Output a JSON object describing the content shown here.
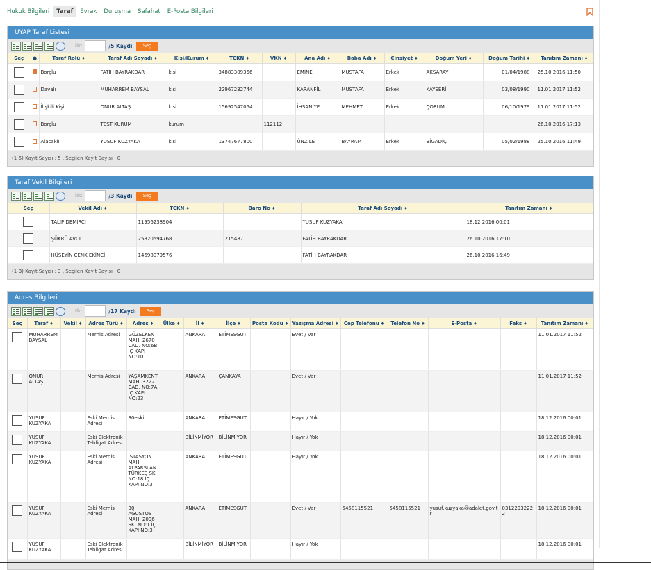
{
  "tabs": [
    "Hukuk Bilgileri",
    "Taraf",
    "Evrak",
    "Duruşma",
    "Safahat",
    "E-Posta Bilgileri"
  ],
  "active_tab": "Taraf",
  "taraf": {
    "title": "UYAP Taraf Listesi",
    "ilk_label": "İlk:",
    "ilk_value": "",
    "kayit_label": "/5 Kaydı",
    "sec_label": "Seç",
    "columns": [
      "Seç",
      "●",
      "Taraf Rolü",
      "Taraf Adı Soyadı",
      "Kişi/Kurum",
      "TCKN",
      "VKN",
      "Ana Adı",
      "Baba Adı",
      "Cinsiyet",
      "Doğum Yeri",
      "Doğum Tarihi",
      "Tanıtım Zamanı"
    ],
    "rows": [
      {
        "flag": "full",
        "rol": "Borçlu",
        "ad": "FATİH BAYRAKDAR",
        "tip": "kisi",
        "tckn": "34883309356",
        "vkn": "",
        "ana": "EMİNE",
        "baba": "MUSTAFA",
        "cins": "Erkek",
        "yer": "AKSARAY",
        "dt": "01/04/1988",
        "tz": "25.10.2016 11:50"
      },
      {
        "flag": "outline",
        "rol": "Davalı",
        "ad": "MUHARREM BAYSAL",
        "tip": "kisi",
        "tckn": "22967232744",
        "vkn": "",
        "ana": "KARANFİL",
        "baba": "MUSTAFA",
        "cins": "Erkek",
        "yer": "KAYSERİ",
        "dt": "03/08/1990",
        "tz": "11.01.2017 11:52"
      },
      {
        "flag": "outline",
        "rol": "İlişkili Kişi",
        "ad": "ONUR ALTAŞ",
        "tip": "kisi",
        "tckn": "15692547054",
        "vkn": "",
        "ana": "İHSANİYE",
        "baba": "MEHMET",
        "cins": "Erkek",
        "yer": "ÇORUM",
        "dt": "06/10/1979",
        "tz": "11.01.2017 11:52"
      },
      {
        "flag": "outline",
        "rol": "Borçlu",
        "ad": "TEST KURUM",
        "tip": "kurum",
        "tckn": "",
        "vkn": "112112",
        "ana": "",
        "baba": "",
        "cins": "",
        "yer": "",
        "dt": "",
        "tz": "26.10.2016 17:13"
      },
      {
        "flag": "outline",
        "rol": "Alacaklı",
        "ad": "YUSUF KUZYAKA",
        "tip": "kisi",
        "tckn": "13747677800",
        "vkn": "",
        "ana": "ÜNZİLE",
        "baba": "BAYRAM",
        "cins": "Erkek",
        "yer": "BİGADİÇ",
        "dt": "05/02/1988",
        "tz": "25.10.2016 11:49"
      }
    ],
    "footer": "(1-5) Kayıt Sayısı : 5  , Seçilen Kayıt Sayısı : 0"
  },
  "vekil": {
    "title": "Taraf Vekil Bilgileri",
    "ilk_label": "İlk:",
    "ilk_value": "",
    "kayit_label": "/3 Kaydı",
    "sec_label": "Seç",
    "columns": [
      "Seç",
      "Vekil Adı",
      "TCKN",
      "Baro No",
      "Taraf Adı Soyadı",
      "Tanıtım Zamanı"
    ],
    "rows": [
      {
        "ad": "TALİP DEMİRCİ",
        "tckn": "11956238904",
        "baro": "",
        "taraf": "YUSUF KUZYAKA",
        "tz": "18.12.2016 00:01"
      },
      {
        "ad": "ŞÜKRÜ AVCI",
        "tckn": "25820594768",
        "baro": "215487",
        "taraf": "FATİH BAYRAKDAR",
        "tz": "26.10.2016 17:10"
      },
      {
        "ad": "HÜSEYİN CENK EKİNCİ",
        "tckn": "14698079576",
        "baro": "",
        "taraf": "FATİH BAYRAKDAR",
        "tz": "26.10.2016 16:49"
      }
    ],
    "footer": "(1-3) Kayıt Sayısı : 3  , Seçilen Kayıt Sayısı : 0"
  },
  "adres": {
    "title": "Adres Bilgileri",
    "ilk_label": "İlk:",
    "ilk_value": "",
    "kayit_label": "/17 Kaydı",
    "sec_label": "Seç",
    "columns": [
      "Seç",
      "Taraf",
      "Vekil",
      "Adres Türü",
      "Adres",
      "Ülke",
      "İl",
      "İlçe",
      "Posta Kodu",
      "Yazışma Adresi",
      "Cep Telefonu",
      "Telefon No",
      "E-Posta",
      "Faks",
      "Tanıtım Zamanı"
    ],
    "rows": [
      {
        "taraf": "MUHARREM BAYSAL",
        "vekil": "",
        "tur": "Mernis Adresi",
        "adres": "GÜZELKENT MAH. 2670 CAD. NO:6B İÇ KAPI NO:10",
        "ulke": "",
        "il": "ANKARA",
        "ilce": "ETİMESGUT",
        "posta": "",
        "yaz": "Evet / Var",
        "cep": "",
        "tel": "",
        "eposta": "",
        "faks": "",
        "tz": "11.01.2017 11:52"
      },
      {
        "taraf": "ONUR ALTAŞ",
        "vekil": "",
        "tur": "Mernis Adresi",
        "adres": "YAŞAMKENT MAH. 3222 CAD. NO:7A İÇ KAPI NO:23",
        "ulke": "",
        "il": "ANKARA",
        "ilce": "ÇANKAYA",
        "posta": "",
        "yaz": "Evet / Var",
        "cep": "",
        "tel": "",
        "eposta": "",
        "faks": "",
        "tz": "11.01.2017 11:52"
      },
      {
        "taraf": "YUSUF KUZYAKA",
        "vekil": "",
        "tur": "Eski Mernis Adresi",
        "adres": "30eski",
        "ulke": "",
        "il": "ANKARA",
        "ilce": "ETİMESGUT",
        "posta": "",
        "yaz": "Hayır / Yok",
        "cep": "",
        "tel": "",
        "eposta": "",
        "faks": "",
        "tz": "18.12.2016 00:01"
      },
      {
        "taraf": "YUSUF KUZYAKA",
        "vekil": "",
        "tur": "Eski Elektronik Tebligat Adresi",
        "adres": "",
        "ulke": "",
        "il": "BİLİNMİYOR",
        "ilce": "BİLİNMİYOR",
        "posta": "",
        "yaz": "Hayır / Yok",
        "cep": "",
        "tel": "",
        "eposta": "",
        "faks": "",
        "tz": "18.12.2016 00:01"
      },
      {
        "taraf": "YUSUF KUZYAKA",
        "vekil": "",
        "tur": "Eski Mernis Adresi",
        "adres": "İSTASYON MAH. ALPARSLAN TÜRKEŞ SK. NO:18 İÇ KAPI NO:3",
        "ulke": "",
        "il": "ANKARA",
        "ilce": "ETİMESGUT",
        "posta": "",
        "yaz": "Hayır / Yok",
        "cep": "",
        "tel": "",
        "eposta": "",
        "faks": "",
        "tz": "18.12.2016 00:01"
      },
      {
        "taraf": "YUSUF KUZYAKA",
        "vekil": "",
        "tur": "Eski Mernis Adresi",
        "adres": "30 AĞUSTOS MAH. 2096 SK. NO:1 İÇ KAPI NO:3",
        "ulke": "",
        "il": "ANKARA",
        "ilce": "ETİMESGUT",
        "posta": "",
        "yaz": "Evet / Var",
        "cep": "5458115521",
        "tel": "5458115521",
        "eposta": "yusuf.kuzyaka@adalet.gov.tr",
        "faks": "03122932222",
        "tz": "18.12.2016 00:01"
      },
      {
        "taraf": "YUSUF KUZYAKA",
        "vekil": "",
        "tur": "Eski Elektronik Tebligat Adresi",
        "adres": "",
        "ulke": "",
        "il": "BİLİNMİYOR",
        "ilce": "BİLİNMİYOR",
        "posta": "",
        "yaz": "Hayır / Yok",
        "cep": "",
        "tel": "",
        "eposta": "",
        "faks": "",
        "tz": "18.12.2016 00:01"
      }
    ]
  }
}
